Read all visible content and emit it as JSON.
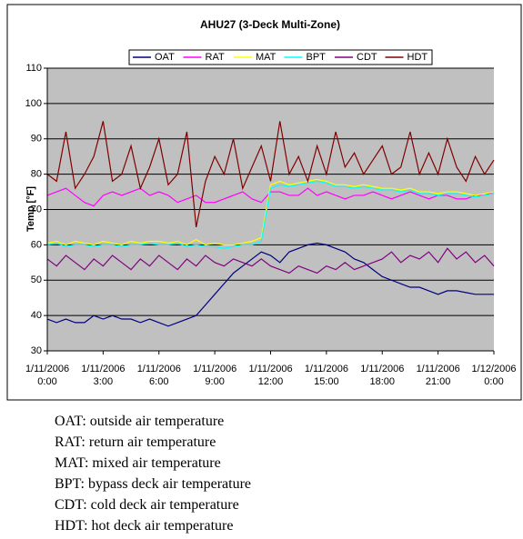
{
  "chart_data": {
    "type": "line",
    "title": "AHU27 (3-Deck Multi-Zone)",
    "y_label": "Temp [°F]",
    "x": [
      "1/11/2006 0:00",
      "1/11/2006 0:30",
      "1/11/2006 1:00",
      "1/11/2006 1:30",
      "1/11/2006 2:00",
      "1/11/2006 2:30",
      "1/11/2006 3:00",
      "1/11/2006 3:30",
      "1/11/2006 4:00",
      "1/11/2006 4:30",
      "1/11/2006 5:00",
      "1/11/2006 5:30",
      "1/11/2006 6:00",
      "1/11/2006 6:30",
      "1/11/2006 7:00",
      "1/11/2006 7:30",
      "1/11/2006 8:00",
      "1/11/2006 8:30",
      "1/11/2006 9:00",
      "1/11/2006 9:30",
      "1/11/2006 10:00",
      "1/11/2006 10:30",
      "1/11/2006 11:00",
      "1/11/2006 11:30",
      "1/11/2006 12:00",
      "1/11/2006 12:30",
      "1/11/2006 13:00",
      "1/11/2006 13:30",
      "1/11/2006 14:00",
      "1/11/2006 14:30",
      "1/11/2006 15:00",
      "1/11/2006 15:30",
      "1/11/2006 16:00",
      "1/11/2006 16:30",
      "1/11/2006 17:00",
      "1/11/2006 17:30",
      "1/11/2006 18:00",
      "1/11/2006 18:30",
      "1/11/2006 19:00",
      "1/11/2006 19:30",
      "1/11/2006 20:00",
      "1/11/2006 20:30",
      "1/11/2006 21:00",
      "1/11/2006 21:30",
      "1/11/2006 22:00",
      "1/11/2006 22:30",
      "1/11/2006 23:00",
      "1/11/2006 23:30",
      "1/12/2006 0:00"
    ],
    "xlim": [
      "1/11/2006 0:00",
      "1/12/2006 0:00"
    ],
    "xticks": [
      "1/11/2006 0:00",
      "1/11/2006 3:00",
      "1/11/2006 6:00",
      "1/11/2006 9:00",
      "1/11/2006 12:00",
      "1/11/2006 15:00",
      "1/11/2006 18:00",
      "1/11/2006 21:00",
      "1/12/2006 0:00"
    ],
    "ylim": [
      30,
      110
    ],
    "yticks": [
      30,
      40,
      50,
      60,
      70,
      80,
      90,
      100,
      110
    ],
    "grid": true,
    "series": [
      {
        "name": "OAT",
        "color": "#000080",
        "values": [
          39,
          38,
          39,
          38,
          38,
          40,
          39,
          40,
          39,
          39,
          38,
          39,
          38,
          37,
          38,
          39,
          40,
          43,
          46,
          49,
          52,
          54,
          56,
          58,
          57,
          55,
          58,
          59,
          60,
          60.5,
          60,
          59,
          58,
          56,
          55,
          53,
          51,
          50,
          49,
          48,
          48,
          47,
          46,
          47,
          47,
          46.5,
          46,
          46,
          46
        ]
      },
      {
        "name": "RAT",
        "color": "#ff00ff",
        "values": [
          74,
          75,
          76,
          74,
          72,
          71,
          74,
          75,
          74,
          75,
          76,
          74,
          75,
          74,
          72,
          73,
          74,
          72,
          72,
          73,
          74,
          75,
          73,
          72,
          75,
          75,
          74,
          74,
          76,
          74,
          75,
          74,
          73,
          74,
          74,
          75,
          74,
          73,
          74,
          75,
          74,
          73,
          74,
          74,
          73,
          73,
          74,
          74,
          75
        ]
      },
      {
        "name": "MAT",
        "color": "#ffff00",
        "values": [
          60.5,
          61,
          60,
          61,
          60.5,
          60,
          61,
          60.5,
          60,
          61,
          60.5,
          61,
          61,
          60.5,
          61,
          60,
          61.5,
          60,
          60.5,
          60,
          60,
          60.5,
          61,
          62,
          77,
          78,
          77,
          77.5,
          78,
          78.5,
          78,
          77,
          77,
          76.5,
          77,
          76.5,
          76,
          76,
          75.5,
          76,
          75,
          75,
          74.5,
          75,
          75,
          74.5,
          74,
          74.5,
          75
        ]
      },
      {
        "name": "BPT",
        "color": "#00ffff",
        "values": [
          60,
          60.5,
          59.5,
          60,
          60,
          59.5,
          60,
          60,
          59.5,
          60,
          60,
          60.5,
          60,
          60,
          60.5,
          59.5,
          60,
          59.5,
          59.5,
          59,
          59.5,
          60,
          60,
          61,
          76,
          77,
          76.5,
          77,
          77.5,
          78,
          77.5,
          76.5,
          76.5,
          76,
          76.5,
          76,
          75.5,
          75.5,
          75,
          75.5,
          74.5,
          74.5,
          74,
          74.5,
          74.5,
          74,
          73.5,
          74,
          74.5
        ]
      },
      {
        "name": "CDT",
        "color": "#800080",
        "values": [
          56,
          54,
          57,
          55,
          53,
          56,
          54,
          57,
          55,
          53,
          56,
          54,
          57,
          55,
          53,
          56,
          54,
          57,
          55,
          54,
          56,
          55,
          54,
          56,
          54,
          53,
          52,
          54,
          53,
          52,
          54,
          53,
          55,
          53,
          54,
          55,
          56,
          58,
          55,
          57,
          56,
          58,
          55,
          59,
          56,
          58,
          55,
          57,
          54
        ]
      },
      {
        "name": "HDT",
        "color": "#800000",
        "values": [
          80,
          78,
          92,
          76,
          80,
          85,
          95,
          78,
          80,
          88,
          76,
          82,
          90,
          77,
          80,
          92,
          65,
          78,
          85,
          80,
          90,
          76,
          82,
          88,
          78,
          95,
          80,
          85,
          78,
          88,
          80,
          92,
          82,
          86,
          80,
          84,
          88,
          80,
          82,
          92,
          80,
          86,
          80,
          90,
          82,
          78,
          85,
          80,
          84
        ]
      }
    ]
  },
  "notes": [
    "OAT: outside air temperature",
    "RAT: return air temperature",
    "MAT: mixed air temperature",
    "BPT: bypass deck air temperature",
    "CDT: cold deck air temperature",
    "HDT: hot deck air temperature"
  ]
}
